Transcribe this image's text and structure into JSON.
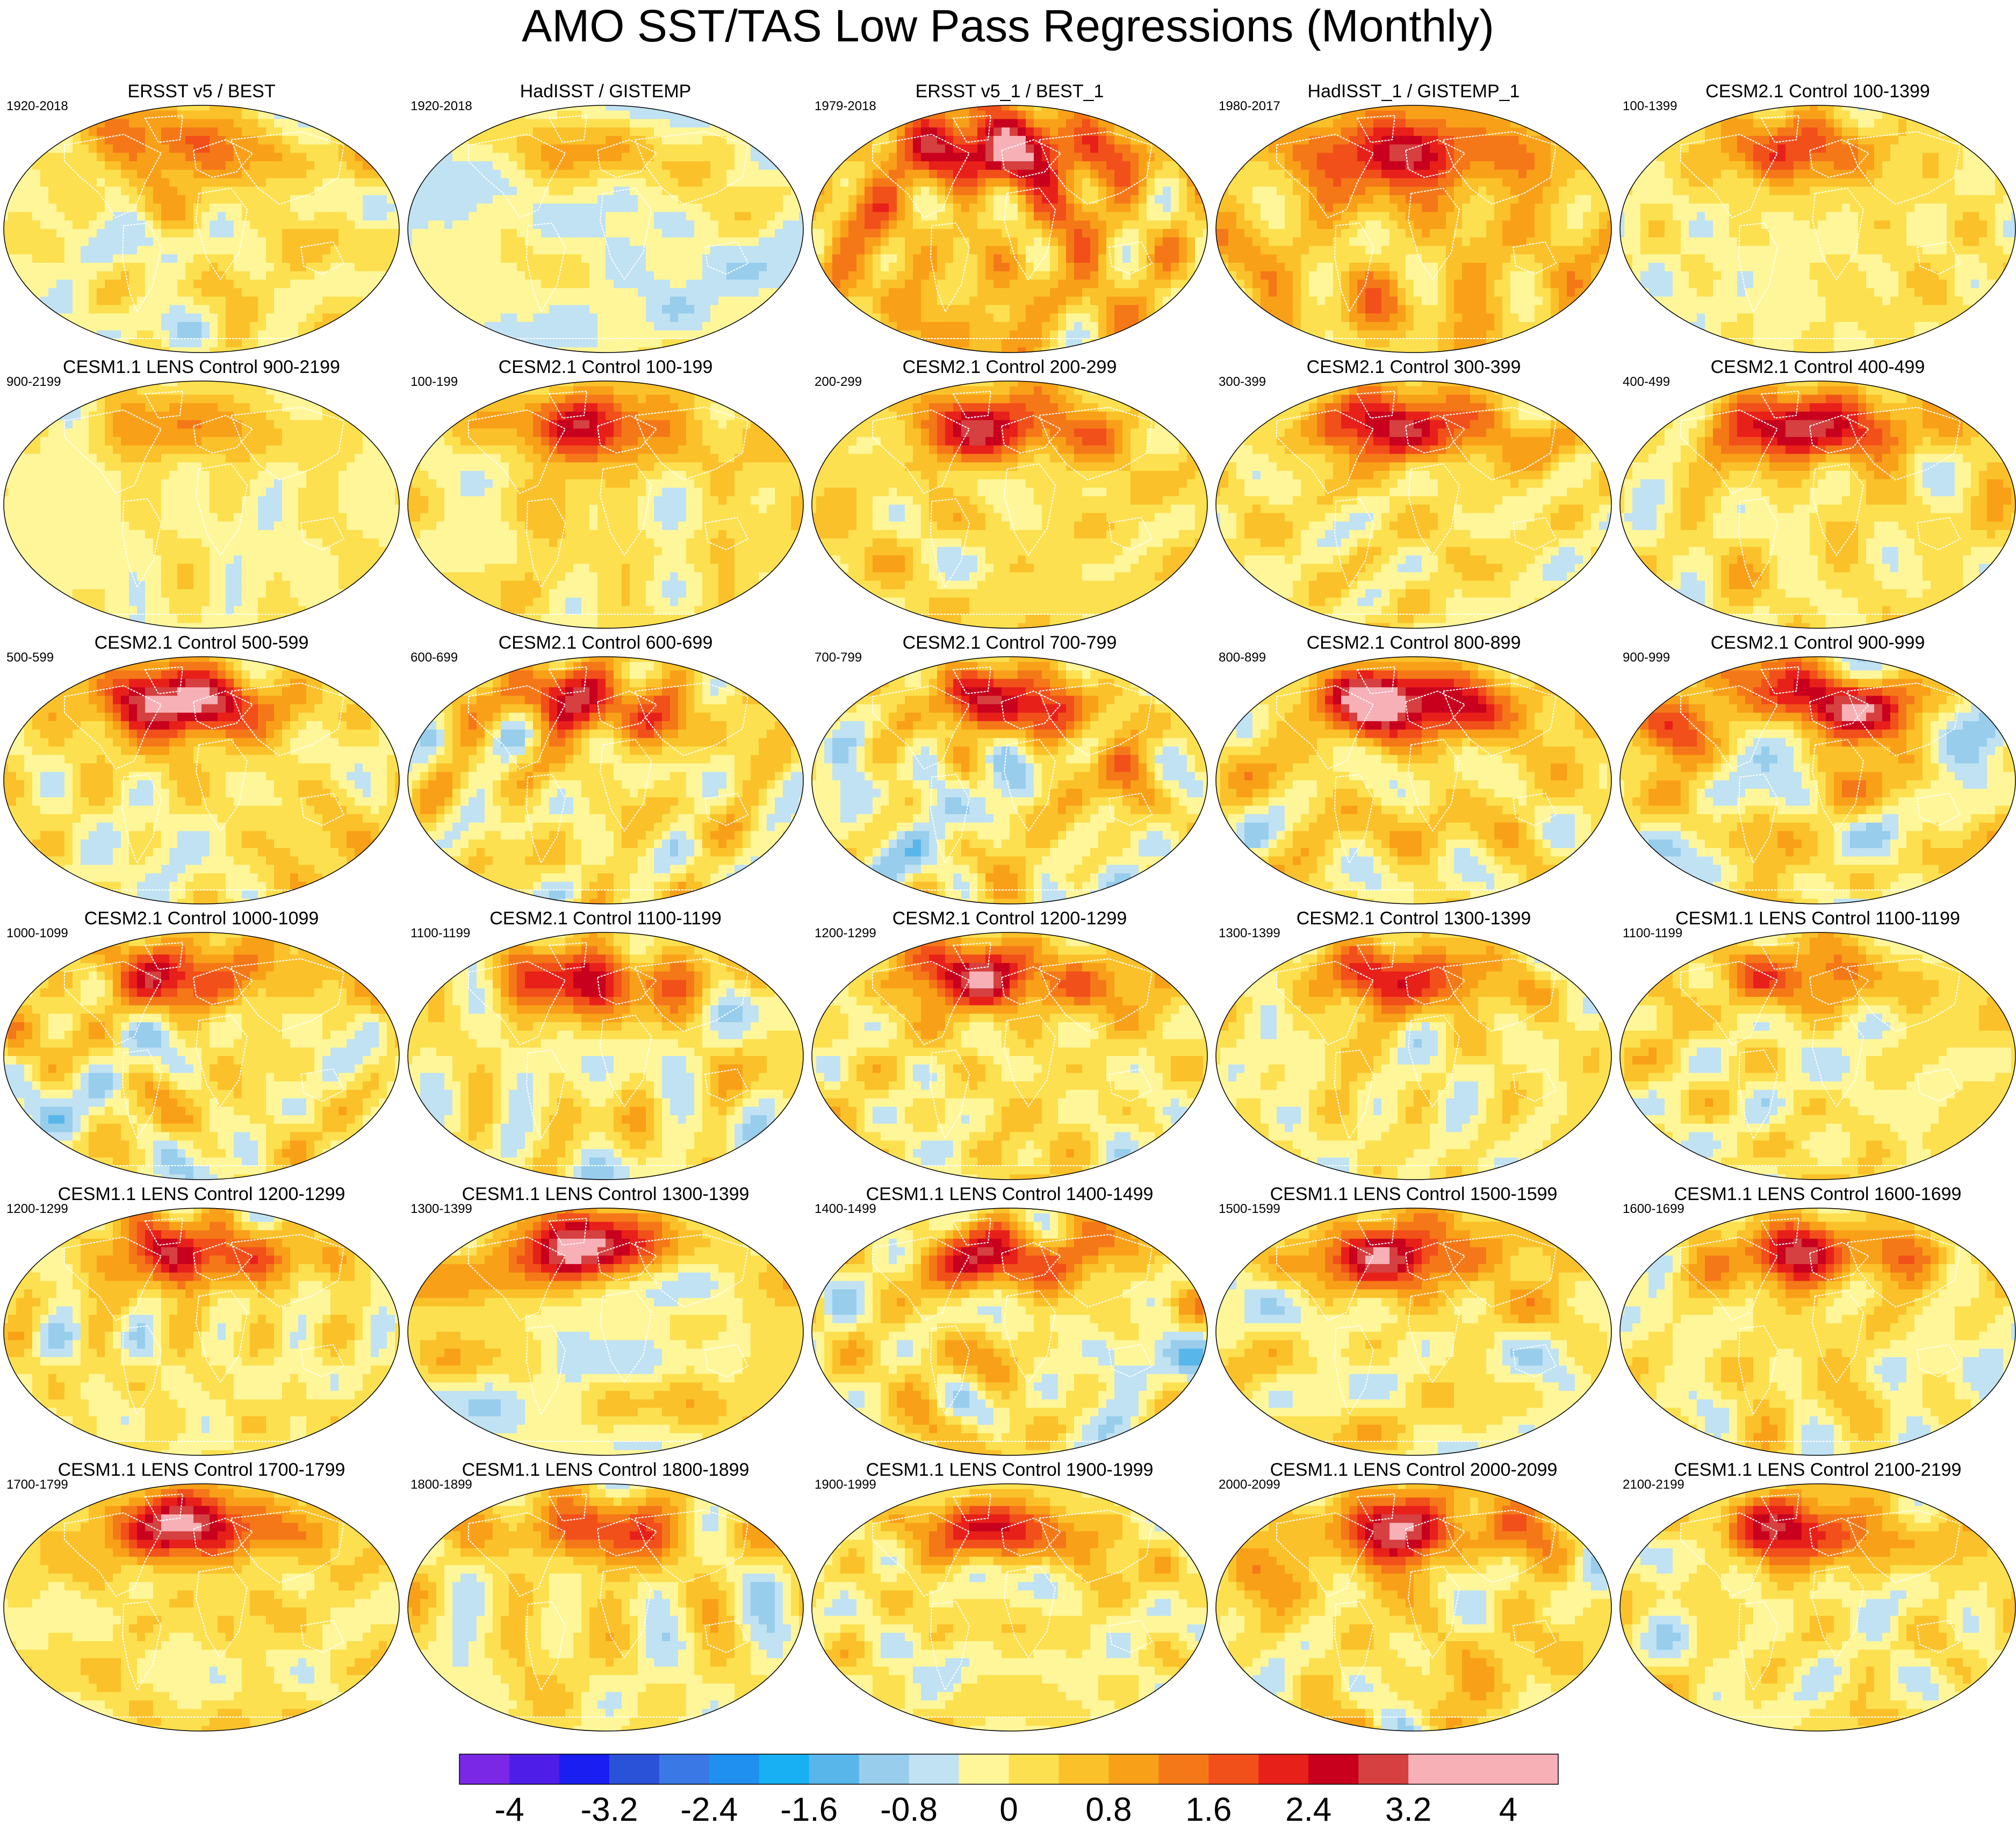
{
  "title": "AMO SST/TAS Low Pass Regressions (Monthly)",
  "panels": [
    {
      "title": "ERSST v5 / BEST",
      "years": "1920-2018",
      "pattern": {
        "seed": 1,
        "amp": 1.2,
        "bias": 0.0,
        "north": 1.6
      }
    },
    {
      "title": "HadISST / GISTEMP",
      "years": "1920-2018",
      "pattern": {
        "seed": 2,
        "amp": 1.0,
        "bias": -0.3,
        "north": 1.0
      }
    },
    {
      "title": "ERSST v5_1 / BEST_1",
      "years": "1979-2018",
      "pattern": {
        "seed": 3,
        "amp": 1.4,
        "bias": 0.6,
        "north": 2.4
      }
    },
    {
      "title": "HadISST_1 / GISTEMP_1",
      "years": "1980-2017",
      "pattern": {
        "seed": 4,
        "amp": 1.4,
        "bias": 0.5,
        "north": 2.2
      }
    },
    {
      "title": "CESM2.1 Control 100-1399",
      "years": "100-1399",
      "pattern": {
        "seed": 5,
        "amp": 0.8,
        "bias": 0.0,
        "north": 1.6
      }
    },
    {
      "title": "CESM1.1 LENS Control 900-2199",
      "years": "900-2199",
      "pattern": {
        "seed": 6,
        "amp": 0.8,
        "bias": -0.1,
        "north": 1.2
      }
    },
    {
      "title": "CESM2.1 Control 100-199",
      "years": "100-199",
      "pattern": {
        "seed": 7,
        "amp": 1.2,
        "bias": 0.1,
        "north": 2.0
      }
    },
    {
      "title": "CESM2.1 Control 200-299",
      "years": "200-299",
      "pattern": {
        "seed": 8,
        "amp": 1.1,
        "bias": 0.2,
        "north": 2.0
      }
    },
    {
      "title": "CESM2.1 Control 300-399",
      "years": "300-399",
      "pattern": {
        "seed": 9,
        "amp": 1.2,
        "bias": 0.1,
        "north": 2.4
      }
    },
    {
      "title": "CESM2.1 Control 400-499",
      "years": "400-499",
      "pattern": {
        "seed": 10,
        "amp": 1.3,
        "bias": 0.1,
        "north": 2.6
      }
    },
    {
      "title": "CESM2.1 Control 500-599",
      "years": "500-599",
      "pattern": {
        "seed": 11,
        "amp": 1.3,
        "bias": 0.1,
        "north": 2.8
      }
    },
    {
      "title": "CESM2.1 Control 600-699",
      "years": "600-699",
      "pattern": {
        "seed": 12,
        "amp": 1.2,
        "bias": 0.1,
        "north": 2.0
      }
    },
    {
      "title": "CESM2.1 Control 700-799",
      "years": "700-799",
      "pattern": {
        "seed": 13,
        "amp": 1.5,
        "bias": 0.0,
        "north": 2.2
      }
    },
    {
      "title": "CESM2.1 Control 800-899",
      "years": "800-899",
      "pattern": {
        "seed": 14,
        "amp": 1.4,
        "bias": 0.2,
        "north": 3.0
      }
    },
    {
      "title": "CESM2.1 Control 900-999",
      "years": "900-999",
      "pattern": {
        "seed": 15,
        "amp": 1.3,
        "bias": 0.1,
        "north": 2.4
      }
    },
    {
      "title": "CESM2.1 Control 1000-1099",
      "years": "1000-1099",
      "pattern": {
        "seed": 16,
        "amp": 1.3,
        "bias": 0.0,
        "north": 2.0
      }
    },
    {
      "title": "CESM2.1 Control 1100-1199",
      "years": "1100-1199",
      "pattern": {
        "seed": 17,
        "amp": 1.1,
        "bias": 0.0,
        "north": 2.2
      }
    },
    {
      "title": "CESM2.1 Control 1200-1299",
      "years": "1200-1299",
      "pattern": {
        "seed": 18,
        "amp": 1.2,
        "bias": 0.1,
        "north": 2.4
      }
    },
    {
      "title": "CESM2.1 Control 1300-1399",
      "years": "1300-1399",
      "pattern": {
        "seed": 19,
        "amp": 1.1,
        "bias": 0.0,
        "north": 2.0
      }
    },
    {
      "title": "CESM1.1 LENS Control 1100-1199",
      "years": "1100-1199",
      "pattern": {
        "seed": 20,
        "amp": 1.4,
        "bias": 0.0,
        "north": 1.6
      }
    },
    {
      "title": "CESM1.1 LENS Control 1200-1299",
      "years": "1200-1299",
      "pattern": {
        "seed": 21,
        "amp": 1.2,
        "bias": 0.0,
        "north": 2.2
      }
    },
    {
      "title": "CESM1.1 LENS Control 1300-1399",
      "years": "1300-1399",
      "pattern": {
        "seed": 22,
        "amp": 1.6,
        "bias": 0.0,
        "north": 2.6
      }
    },
    {
      "title": "CESM1.1 LENS Control 1400-1499",
      "years": "1400-1499",
      "pattern": {
        "seed": 23,
        "amp": 1.4,
        "bias": 0.0,
        "north": 2.2
      }
    },
    {
      "title": "CESM1.1 LENS Control 1500-1599",
      "years": "1500-1599",
      "pattern": {
        "seed": 24,
        "amp": 1.5,
        "bias": 0.0,
        "north": 2.6
      }
    },
    {
      "title": "CESM1.1 LENS Control 1600-1699",
      "years": "1600-1699",
      "pattern": {
        "seed": 25,
        "amp": 1.4,
        "bias": 0.0,
        "north": 2.4
      }
    },
    {
      "title": "CESM1.1 LENS Control 1700-1799",
      "years": "1700-1799",
      "pattern": {
        "seed": 26,
        "amp": 1.2,
        "bias": 0.1,
        "north": 2.6
      }
    },
    {
      "title": "CESM1.1 LENS Control 1800-1899",
      "years": "1800-1899",
      "pattern": {
        "seed": 27,
        "amp": 1.3,
        "bias": 0.0,
        "north": 1.8
      }
    },
    {
      "title": "CESM1.1 LENS Control 1900-1999",
      "years": "1900-1999",
      "pattern": {
        "seed": 28,
        "amp": 1.4,
        "bias": 0.0,
        "north": 1.8
      }
    },
    {
      "title": "CESM1.1 LENS Control 2000-2099",
      "years": "2000-2099",
      "pattern": {
        "seed": 29,
        "amp": 1.2,
        "bias": 0.2,
        "north": 2.2
      }
    },
    {
      "title": "CESM1.1 LENS Control 2100-2199",
      "years": "2100-2199",
      "pattern": {
        "seed": 30,
        "amp": 1.3,
        "bias": 0.0,
        "north": 2.2
      }
    }
  ],
  "colorbar": {
    "levels": [
      -4.4,
      -4.0,
      -3.6,
      -3.2,
      -2.8,
      -2.4,
      -2.0,
      -1.6,
      -1.2,
      -0.8,
      -0.4,
      0.0,
      0.4,
      0.8,
      1.2,
      1.6,
      2.0,
      2.4,
      2.8,
      3.2,
      3.6,
      4.0,
      4.4
    ],
    "labels": [
      "-4",
      "-3.2",
      "-2.4",
      "-1.6",
      "-0.8",
      "0",
      "0.8",
      "1.6",
      "2.4",
      "3.2",
      "4"
    ],
    "label_values": [
      -4,
      -3.2,
      -2.4,
      -1.6,
      -0.8,
      0,
      0.8,
      1.6,
      2.4,
      3.2,
      4
    ],
    "colors": [
      "#7a28e6",
      "#4e1ee8",
      "#1a1ef0",
      "#2a52d8",
      "#3a78e6",
      "#2090f0",
      "#18b0f2",
      "#58b6ea",
      "#98cdec",
      "#c0e2f2",
      "#fff69a",
      "#fce050",
      "#fbc12a",
      "#f9a019",
      "#f57818",
      "#f2501a",
      "#e8201a",
      "#c8001e",
      "#d64040",
      "#f6b0b6",
      "#f6b0b6",
      "#f6b0b6"
    ]
  }
}
